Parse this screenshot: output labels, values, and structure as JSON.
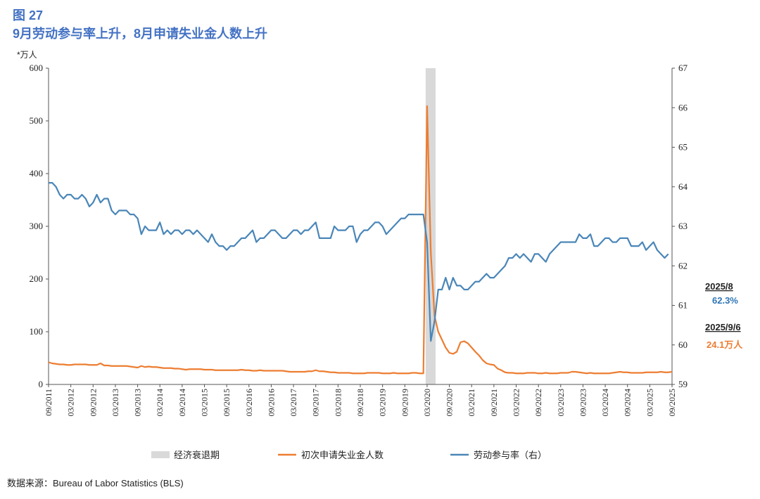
{
  "chart_data": {
    "type": "line",
    "title": "图 27",
    "subtitle": "9月劳动参与率上升，8月申请失业金人数上升",
    "y_label": "*万人",
    "source": "数据来源：Bureau of Labor Statistics (BLS)",
    "x": [
      "09/2011",
      null,
      null,
      null,
      null,
      null,
      "03/2012",
      null,
      null,
      null,
      null,
      null,
      "09/2012",
      null,
      null,
      null,
      null,
      null,
      "03/2013",
      null,
      null,
      null,
      null,
      null,
      "09/2013",
      null,
      null,
      null,
      null,
      null,
      "03/2014",
      null,
      null,
      null,
      null,
      null,
      "09/2014",
      null,
      null,
      null,
      null,
      null,
      "03/2015",
      null,
      null,
      null,
      null,
      null,
      "09/2015",
      null,
      null,
      null,
      null,
      null,
      "03/2016",
      null,
      null,
      null,
      null,
      null,
      "09/2016",
      null,
      null,
      null,
      null,
      null,
      "03/2017",
      null,
      null,
      null,
      null,
      null,
      "09/2017",
      null,
      null,
      null,
      null,
      null,
      "03/2018",
      null,
      null,
      null,
      null,
      null,
      "09/2018",
      null,
      null,
      null,
      null,
      null,
      "03/2019",
      null,
      null,
      null,
      null,
      null,
      "09/2019",
      null,
      null,
      null,
      null,
      null,
      "03/2020",
      null,
      null,
      null,
      null,
      null,
      "09/2020",
      null,
      null,
      null,
      null,
      null,
      "03/2021",
      null,
      null,
      null,
      null,
      null,
      "09/2021",
      null,
      null,
      null,
      null,
      null,
      "03/2022",
      null,
      null,
      null,
      null,
      null,
      "09/2022",
      null,
      null,
      null,
      null,
      null,
      "03/2023",
      null,
      null,
      null,
      null,
      null,
      "09/2023",
      null,
      null,
      null,
      null,
      null,
      "03/2024",
      null,
      null,
      null,
      null,
      null,
      "09/2024",
      null,
      null,
      null,
      null,
      null,
      "03/2025",
      null,
      null,
      null,
      null,
      null,
      "09/2025"
    ],
    "recession": {
      "name": "经济衰退期",
      "color": "#d9d9d9",
      "start": 101.6,
      "end": 104.3
    },
    "series": [
      {
        "name": "初次申请失业金人数",
        "color": "#ed7d31",
        "axis": "y",
        "values": [
          42,
          40,
          39,
          38,
          38,
          37,
          37,
          38,
          38,
          38,
          38,
          37,
          37,
          37,
          40,
          36,
          36,
          35,
          35,
          35,
          35,
          35,
          34,
          33,
          32,
          35,
          33,
          34,
          33,
          33,
          32,
          31,
          31,
          31,
          30,
          30,
          29,
          28,
          29,
          29,
          29,
          29,
          28,
          28,
          28,
          27,
          27,
          27,
          27,
          27,
          27,
          27,
          28,
          27,
          27,
          26,
          26,
          27,
          26,
          26,
          26,
          26,
          26,
          26,
          25,
          24,
          24,
          24,
          24,
          24,
          25,
          25,
          27,
          25,
          25,
          24,
          23,
          23,
          22,
          22,
          22,
          22,
          21,
          21,
          21,
          21,
          22,
          22,
          22,
          22,
          21,
          21,
          21,
          22,
          21,
          21,
          21,
          21,
          22,
          22,
          21,
          21,
          528,
          250,
          130,
          100,
          85,
          70,
          60,
          58,
          62,
          80,
          82,
          78,
          70,
          62,
          55,
          46,
          40,
          38,
          37,
          30,
          27,
          23,
          22,
          22,
          21,
          21,
          21,
          22,
          22,
          22,
          21,
          21,
          22,
          21,
          21,
          21,
          22,
          22,
          22,
          24,
          24,
          23,
          22,
          21,
          22,
          21,
          21,
          21,
          21,
          21,
          22,
          23,
          24,
          23,
          23,
          22,
          22,
          22,
          22,
          23,
          23,
          23,
          23,
          24,
          23,
          23,
          24.1
        ]
      },
      {
        "name": "劳动参与率（右）",
        "color": "#4a86b8",
        "axis": "y2",
        "values": [
          64.1,
          64.1,
          64.0,
          63.8,
          63.7,
          63.8,
          63.8,
          63.7,
          63.7,
          63.8,
          63.7,
          63.5,
          63.6,
          63.8,
          63.6,
          63.7,
          63.7,
          63.4,
          63.3,
          63.4,
          63.4,
          63.4,
          63.3,
          63.3,
          63.2,
          62.8,
          63.0,
          62.9,
          62.9,
          62.9,
          63.1,
          62.8,
          62.9,
          62.8,
          62.9,
          62.9,
          62.8,
          62.9,
          62.9,
          62.8,
          62.9,
          62.8,
          62.7,
          62.6,
          62.8,
          62.6,
          62.5,
          62.5,
          62.4,
          62.5,
          62.5,
          62.6,
          62.7,
          62.7,
          62.8,
          62.9,
          62.6,
          62.7,
          62.7,
          62.8,
          62.9,
          62.9,
          62.8,
          62.7,
          62.7,
          62.8,
          62.9,
          62.9,
          62.8,
          62.9,
          62.9,
          63.0,
          63.1,
          62.7,
          62.7,
          62.7,
          62.7,
          63.0,
          62.9,
          62.9,
          62.9,
          63.0,
          63.0,
          62.6,
          62.8,
          62.9,
          62.9,
          63.0,
          63.1,
          63.1,
          63.0,
          62.8,
          62.9,
          63.0,
          63.1,
          63.2,
          63.2,
          63.3,
          63.3,
          63.3,
          63.3,
          63.3,
          62.6,
          60.1,
          60.6,
          61.4,
          61.4,
          61.7,
          61.4,
          61.7,
          61.5,
          61.5,
          61.4,
          61.4,
          61.5,
          61.6,
          61.6,
          61.7,
          61.8,
          61.7,
          61.7,
          61.8,
          61.9,
          62.0,
          62.2,
          62.2,
          62.3,
          62.2,
          62.3,
          62.2,
          62.1,
          62.3,
          62.3,
          62.2,
          62.1,
          62.3,
          62.4,
          62.5,
          62.6,
          62.6,
          62.6,
          62.6,
          62.6,
          62.8,
          62.7,
          62.7,
          62.8,
          62.5,
          62.5,
          62.6,
          62.7,
          62.7,
          62.6,
          62.6,
          62.7,
          62.7,
          62.7,
          62.5,
          62.5,
          62.5,
          62.6,
          62.4,
          62.5,
          62.6,
          62.4,
          62.3,
          62.2,
          62.3,
          null
        ]
      }
    ],
    "ylim": [
      0,
      600
    ],
    "yticks": [
      0,
      100,
      200,
      300,
      400,
      500,
      600
    ],
    "y2lim": [
      59,
      67
    ],
    "y2ticks": [
      59,
      60,
      61,
      62,
      63,
      64,
      65,
      66,
      67
    ],
    "annotations": [
      {
        "date": "2025/8",
        "text": "62.3%",
        "color": "#2e75b6"
      },
      {
        "date": "2025/9/6",
        "text": "24.1万人",
        "color": "#ed7d31"
      }
    ]
  }
}
